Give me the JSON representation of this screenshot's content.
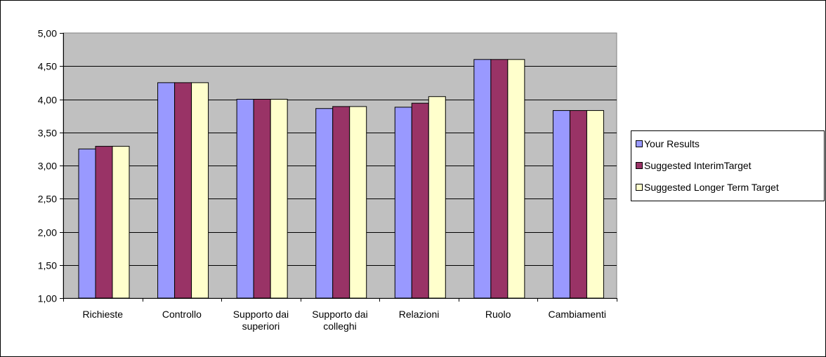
{
  "chart_data": {
    "type": "bar",
    "title": "",
    "xlabel": "",
    "ylabel": "",
    "ylim": [
      1.0,
      5.0
    ],
    "ytick_step": 0.5,
    "ytick_labels": [
      "1,00",
      "1,50",
      "2,00",
      "2,50",
      "3,00",
      "3,50",
      "4,00",
      "4,50",
      "5,00"
    ],
    "grid": true,
    "plot_background": "#C0C0C0",
    "legend_position": "right",
    "categories": [
      [
        "Richieste"
      ],
      [
        "Controllo"
      ],
      [
        "Supporto dai",
        "superiori"
      ],
      [
        "Supporto dai",
        "colleghi"
      ],
      [
        "Relazioni"
      ],
      [
        "Ruolo"
      ],
      [
        "Cambiamenti"
      ]
    ],
    "series": [
      {
        "name": "Your Results",
        "color": "#9999FF",
        "values": [
          3.25,
          4.25,
          4.0,
          3.86,
          3.88,
          4.6,
          3.83
        ]
      },
      {
        "name": "Suggested InterimTarget",
        "color": "#993366",
        "values": [
          3.29,
          4.25,
          4.0,
          3.89,
          3.94,
          4.6,
          3.83
        ]
      },
      {
        "name": "Suggested Longer Term Target",
        "color": "#FFFFCC",
        "values": [
          3.29,
          4.25,
          4.0,
          3.89,
          4.04,
          4.6,
          3.83
        ]
      }
    ]
  }
}
